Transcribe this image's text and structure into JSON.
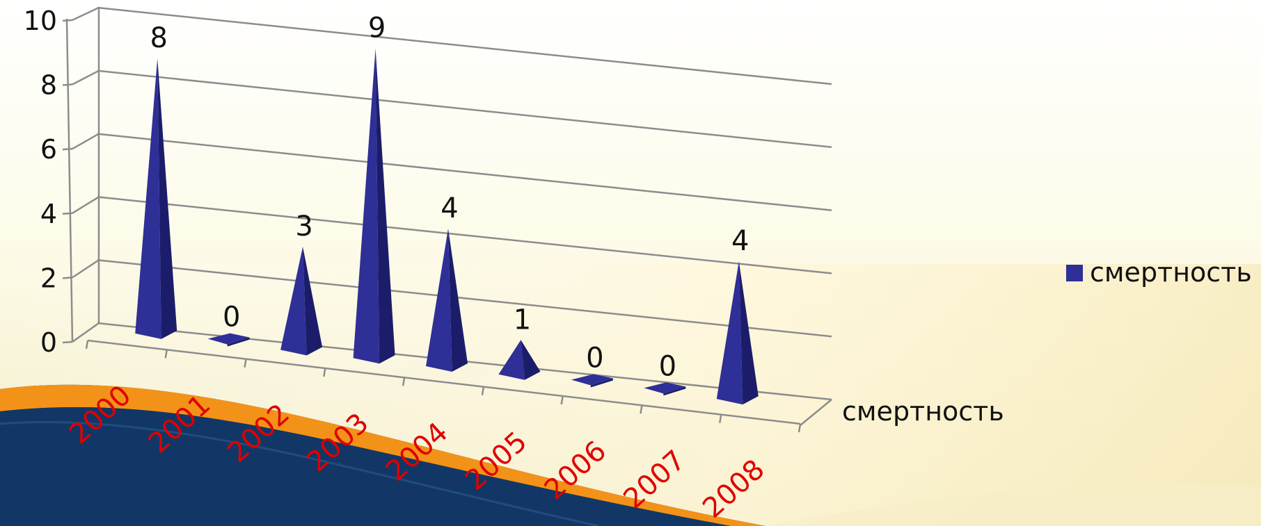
{
  "chart_data": {
    "type": "bar",
    "style": "3d-pyramid",
    "categories": [
      "2000",
      "2001",
      "2002",
      "2003",
      "2004",
      "2005",
      "2006",
      "2007",
      "2008"
    ],
    "series": [
      {
        "name": "смертность",
        "values": [
          8,
          0,
          3,
          9,
          4,
          1,
          0,
          0,
          4
        ]
      }
    ],
    "depth_axis_label": "смертность",
    "y_ticks": [
      "0",
      "2",
      "4",
      "6",
      "8",
      "10"
    ],
    "ylim": [
      0,
      10
    ],
    "grid": true,
    "legend": {
      "position": "right",
      "label": "смертность"
    },
    "colors": {
      "series": "#2e2f97",
      "series_dark": "#1c1d6a",
      "series_light": "#4a4cb8",
      "category_labels": "#e00000",
      "grid": "#8c8c8c"
    }
  }
}
